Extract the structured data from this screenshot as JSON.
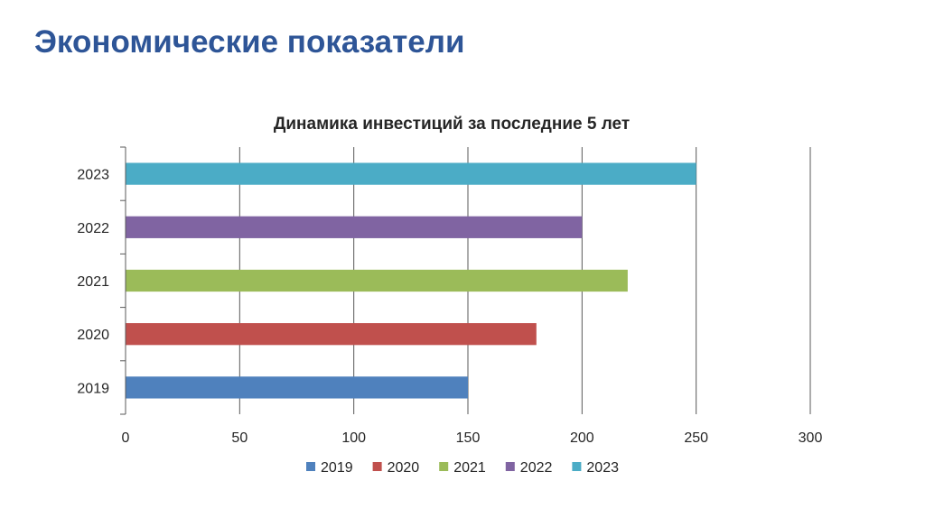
{
  "slide": {
    "title": "Экономические показатели"
  },
  "chart_data": {
    "type": "bar",
    "orientation": "horizontal",
    "title": "Динамика инвестиций за последние 5 лет",
    "xlabel": "",
    "ylabel": "",
    "categories": [
      "2019",
      "2020",
      "2021",
      "2022",
      "2023"
    ],
    "values": [
      150,
      180,
      220,
      200,
      250
    ],
    "colors": [
      "#4f81bd",
      "#c0504d",
      "#9bbb59",
      "#8064a2",
      "#4bacc6"
    ],
    "xlim": [
      0,
      300
    ],
    "xticks": [
      0,
      50,
      100,
      150,
      200,
      250,
      300
    ],
    "grid": true,
    "legend": {
      "position": "bottom",
      "entries": [
        "2019",
        "2020",
        "2021",
        "2022",
        "2023"
      ]
    }
  }
}
